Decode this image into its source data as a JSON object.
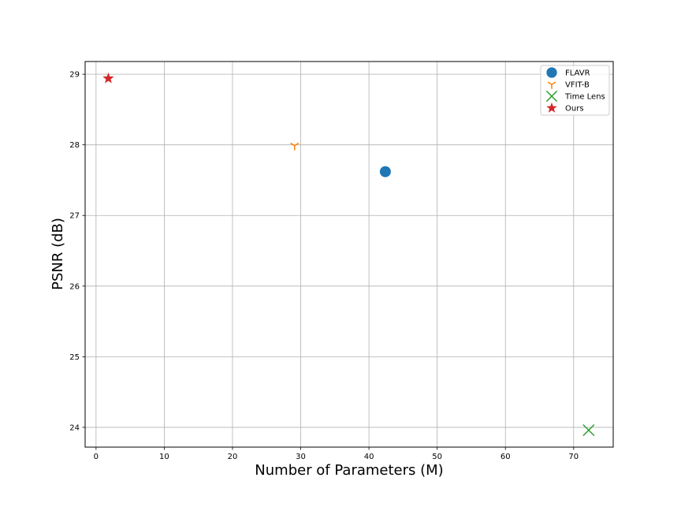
{
  "chart_data": {
    "type": "scatter",
    "title": "",
    "xlabel": "Number of Parameters (M)",
    "ylabel": "PSNR (dB)",
    "xlim": [
      -1.6,
      75.8
    ],
    "ylim": [
      23.72,
      29.18
    ],
    "xticks": [
      0,
      10,
      20,
      30,
      40,
      50,
      60,
      70
    ],
    "yticks": [
      24,
      25,
      26,
      27,
      28,
      29
    ],
    "grid": true,
    "legend_position": "top-right",
    "series": [
      {
        "name": "FLAVR",
        "marker": "circle",
        "color": "#1f77b4",
        "x": 42.4,
        "y": 27.62
      },
      {
        "name": "VFIT-B",
        "marker": "tri_down",
        "color": "#ff7f0e",
        "x": 29.1,
        "y": 27.99
      },
      {
        "name": "Time Lens",
        "marker": "x",
        "color": "#2ca02c",
        "x": 72.2,
        "y": 23.96
      },
      {
        "name": "Ours",
        "marker": "star",
        "color": "#d62728",
        "x": 1.8,
        "y": 28.94
      }
    ]
  }
}
